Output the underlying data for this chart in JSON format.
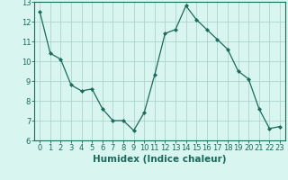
{
  "x": [
    0,
    1,
    2,
    3,
    4,
    5,
    6,
    7,
    8,
    9,
    10,
    11,
    12,
    13,
    14,
    15,
    16,
    17,
    18,
    19,
    20,
    21,
    22,
    23
  ],
  "y": [
    12.5,
    10.4,
    10.1,
    8.8,
    8.5,
    8.6,
    7.6,
    7.0,
    7.0,
    6.5,
    7.4,
    9.3,
    11.4,
    11.6,
    12.8,
    12.1,
    11.6,
    11.1,
    10.6,
    9.5,
    9.1,
    7.6,
    6.6,
    6.7
  ],
  "line_color": "#1a6b5a",
  "marker": "D",
  "marker_size": 2.0,
  "bg_color": "#d8f5f0",
  "grid_color": "#aed4cc",
  "xlabel": "Humidex (Indice chaleur)",
  "ylim": [
    6,
    13
  ],
  "xlim": [
    -0.5,
    23.5
  ],
  "yticks": [
    6,
    7,
    8,
    9,
    10,
    11,
    12,
    13
  ],
  "xticks": [
    0,
    1,
    2,
    3,
    4,
    5,
    6,
    7,
    8,
    9,
    10,
    11,
    12,
    13,
    14,
    15,
    16,
    17,
    18,
    19,
    20,
    21,
    22,
    23
  ],
  "tick_fontsize": 6,
  "xlabel_fontsize": 7.5,
  "linewidth": 0.9
}
